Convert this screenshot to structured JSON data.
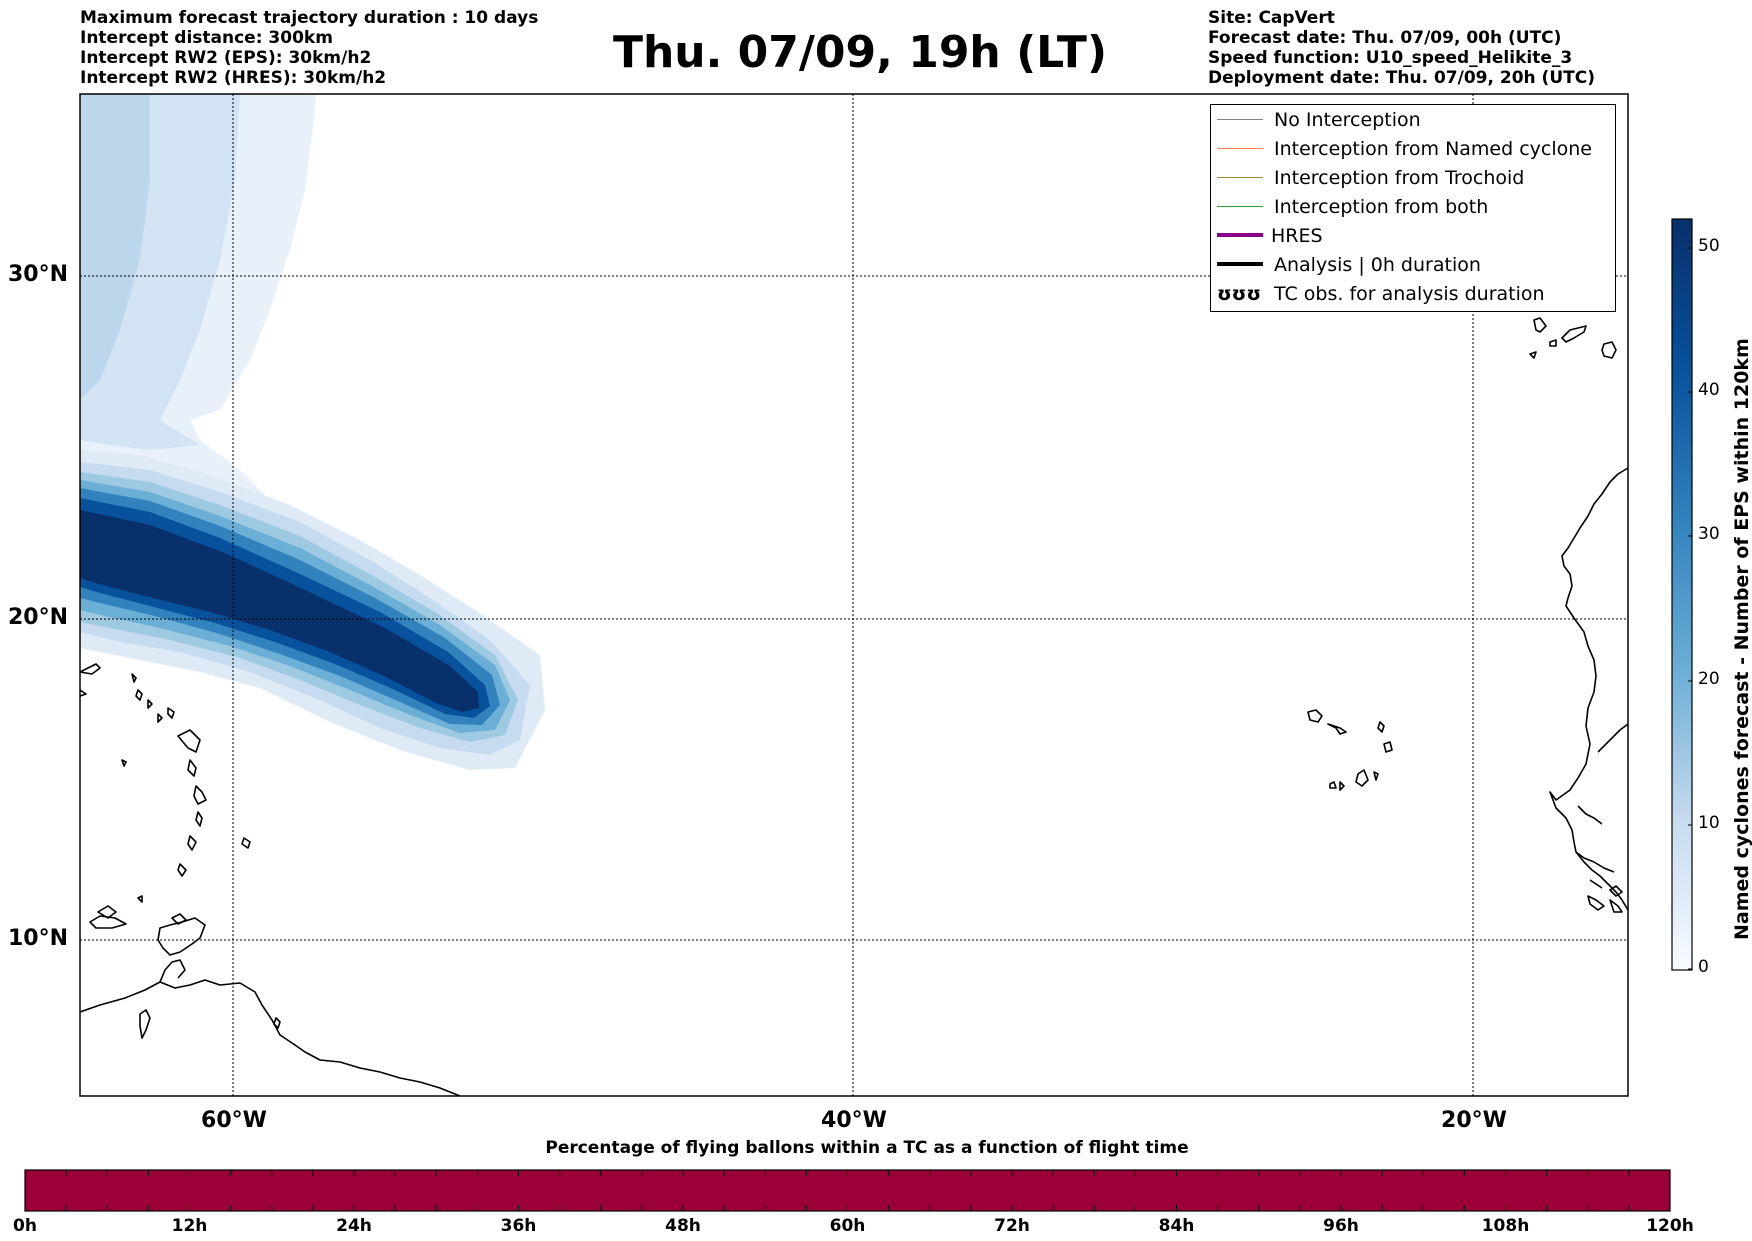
{
  "header": {
    "left_lines": [
      "Maximum forecast trajectory duration : 10 days",
      "Intercept distance: 300km",
      "Intercept RW2 (EPS):  30km/h2",
      "Intercept RW2 (HRES): 30km/h2"
    ],
    "title": "Thu. 07/09, 19h (LT)",
    "right_lines": [
      "Site: CapVert",
      "Forecast date: Thu. 07/09, 00h (UTC)",
      "Speed function: U10_speed_Helikite_3",
      "Deployment date: Thu. 07/09, 20h (UTC)"
    ]
  },
  "map": {
    "lat_labels": [
      "30°N",
      "20°N",
      "10°N"
    ],
    "lon_labels": [
      "60°W",
      "40°W",
      "20°W"
    ],
    "gridlines": true,
    "land_outline_color": "#000000",
    "density_colors": [
      "#deebf7",
      "#c6dbef",
      "#9ecae1",
      "#6baed6",
      "#3182bd",
      "#08519c",
      "#08306b"
    ]
  },
  "legend": {
    "items": [
      {
        "label": "No Interception",
        "color": "#808080",
        "style": "thin"
      },
      {
        "label": "Interception from Named cyclone",
        "color": "#ff7f50",
        "style": "thin"
      },
      {
        "label": "Interception from Trochoid",
        "color": "#9a8a2a",
        "style": "thin"
      },
      {
        "label": "Interception from both",
        "color": "#2ca02c",
        "style": "thin"
      },
      {
        "label": "HRES",
        "color": "#8b008b",
        "style": "thick"
      },
      {
        "label": "Analysis | 0h duration",
        "color": "#000000",
        "style": "thick"
      },
      {
        "label": "TC obs. for analysis duration",
        "color": "#000000",
        "style": "symbol",
        "symbol": "ʊʊʊ"
      }
    ]
  },
  "colorbar": {
    "label": "Named cyclones forecast - Number of EPS within 120km",
    "ticks": [
      "50",
      "40",
      "30",
      "20",
      "10",
      "0"
    ],
    "colors_top_to_bottom": [
      "#08306b",
      "#08519c",
      "#2171b5",
      "#4292c6",
      "#6baed6",
      "#9ecae1",
      "#c6dbef",
      "#deebf7",
      "#f7fbff"
    ]
  },
  "flight_bar": {
    "title": "Percentage of flying ballons within a TC as a function of flight time",
    "ticks": [
      "0h",
      "12h",
      "24h",
      "36h",
      "48h",
      "60h",
      "72h",
      "84h",
      "96h",
      "108h",
      "120h"
    ],
    "fill_color": "#9b0038"
  }
}
